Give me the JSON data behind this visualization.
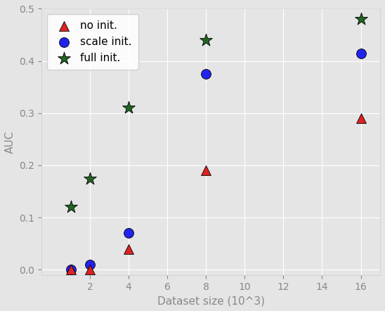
{
  "x_values": [
    1,
    2,
    4,
    8,
    16
  ],
  "no_init": [
    0.0,
    0.0,
    0.04,
    0.19,
    0.29
  ],
  "scale_init": [
    0.0,
    0.01,
    0.07,
    0.375,
    0.415
  ],
  "full_init": [
    0.12,
    0.175,
    0.31,
    0.44,
    0.48
  ],
  "no_init_color": "#dd2222",
  "scale_init_color": "#2222ee",
  "full_init_color": "#226622",
  "bg_color": "#e5e5e5",
  "xlabel": "Dataset size (10^3)",
  "ylabel": "AUC",
  "xlim": [
    -0.5,
    17
  ],
  "ylim": [
    -0.01,
    0.5
  ],
  "xticks": [
    2,
    4,
    6,
    8,
    10,
    12,
    14,
    16
  ],
  "yticks": [
    0.0,
    0.1,
    0.2,
    0.3,
    0.4,
    0.5
  ],
  "marker_size": 100,
  "star_size": 180,
  "legend_labels": [
    "no init.",
    "scale init.",
    "full init."
  ]
}
